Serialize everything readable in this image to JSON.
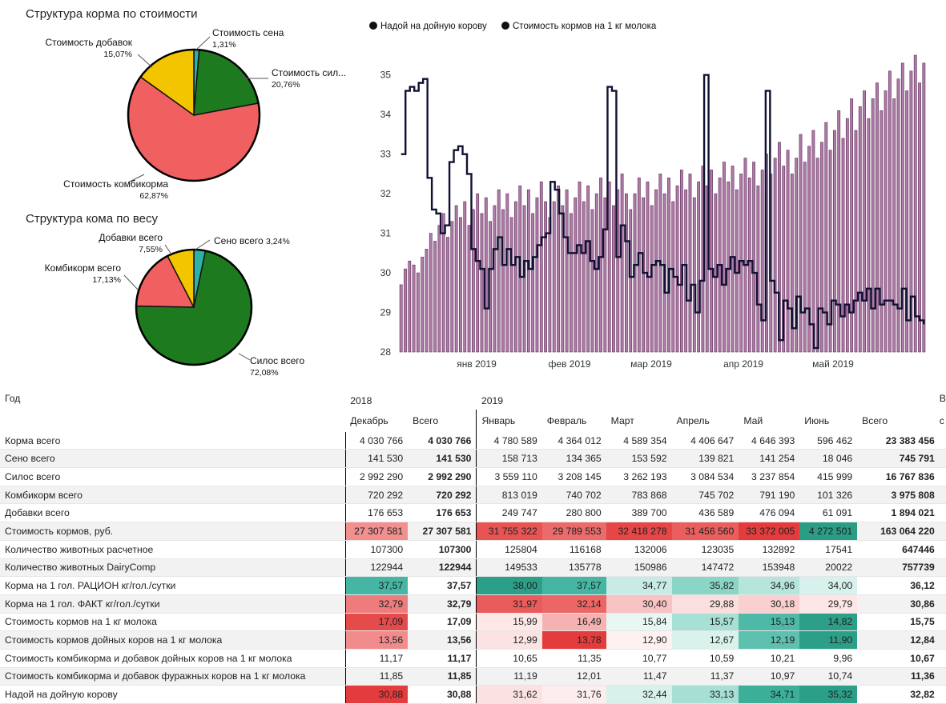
{
  "pie_cost": {
    "title": "Структура корма по стоимости",
    "slices": [
      {
        "label": "Стоимость сена",
        "pct": "1,31%",
        "value": 1.31,
        "color": "#2ab3a6"
      },
      {
        "label": "Стоимость сил...",
        "pct": "20,76%",
        "value": 20.76,
        "color": "#1e7a1e"
      },
      {
        "label": "Стоимость комбикорма",
        "pct": "62,87%",
        "value": 62.87,
        "color": "#f06060"
      },
      {
        "label": "Стоимость добавок",
        "pct": "15,07%",
        "value": 15.07,
        "color": "#f2c500"
      }
    ]
  },
  "pie_weight": {
    "title": "Структура кома по весу",
    "slices": [
      {
        "label": "Сено всего",
        "pct": "3,24%",
        "value": 3.24,
        "color": "#2ab3a6"
      },
      {
        "label": "Силос всего",
        "pct": "72,08%",
        "value": 72.08,
        "color": "#1e7a1e"
      },
      {
        "label": "Комбикорм всего",
        "pct": "17,13%",
        "value": 17.13,
        "color": "#f06060"
      },
      {
        "label": "Добавки всего",
        "pct": "7,55%",
        "value": 7.55,
        "color": "#f2c500"
      }
    ]
  },
  "chart_data": {
    "type": "bar",
    "legend": [
      "Надой на дойную корову",
      "Стоимость кормов на 1 кг молока"
    ],
    "legend_placement": "top-left",
    "ylim": [
      28,
      35.5
    ],
    "yticks": [
      "28",
      "29",
      "30",
      "31",
      "32",
      "33",
      "34",
      "35"
    ],
    "xticks": [
      "янв 2019",
      "фев 2019",
      "мар 2019",
      "апр 2019",
      "май 2019"
    ],
    "series": [
      {
        "name": "Надой на дойную корову",
        "kind": "bar",
        "color": "#b07aa8",
        "values": [
          29.7,
          30.1,
          30.3,
          30.2,
          30.0,
          30.4,
          30.6,
          31.0,
          30.8,
          31.2,
          31.5,
          30.9,
          31.3,
          31.7,
          31.4,
          31.8,
          31.2,
          31.6,
          32.0,
          31.5,
          31.9,
          31.3,
          31.7,
          32.1,
          31.6,
          32.0,
          31.4,
          31.8,
          32.2,
          31.7,
          32.1,
          31.5,
          31.9,
          32.3,
          31.8,
          31.4,
          31.8,
          32.2,
          31.7,
          32.1,
          31.5,
          31.9,
          32.3,
          31.8,
          32.2,
          31.6,
          32.0,
          32.4,
          31.9,
          32.3,
          31.7,
          32.1,
          32.5,
          32.0,
          31.6,
          32.0,
          32.4,
          31.9,
          32.3,
          31.7,
          32.1,
          32.5,
          32.0,
          32.4,
          31.8,
          32.2,
          32.6,
          32.1,
          32.5,
          31.9,
          32.3,
          32.7,
          32.2,
          32.6,
          32.0,
          32.4,
          32.8,
          32.3,
          32.7,
          32.1,
          32.5,
          32.9,
          32.4,
          32.8,
          32.2,
          32.6,
          33.0,
          32.5,
          32.9,
          33.3,
          32.7,
          33.1,
          32.5,
          32.9,
          33.5,
          32.8,
          33.2,
          33.6,
          32.9,
          33.3,
          33.8,
          33.1,
          33.6,
          34.1,
          33.4,
          33.9,
          34.4,
          33.6,
          34.2,
          34.6,
          33.9,
          34.4,
          34.8,
          34.1,
          34.6,
          35.1,
          34.4,
          34.9,
          35.3,
          34.6,
          35.1,
          35.5,
          34.8,
          35.3
        ],
        "notes": "Bar heights approximated; values in liters per cow"
      },
      {
        "name": "Стоимость кормов на 1 кг молока",
        "kind": "line",
        "color": "#111133",
        "values": [
          33.0,
          34.6,
          34.7,
          34.6,
          34.8,
          34.9,
          32.4,
          31.6,
          31.5,
          31.0,
          31.2,
          32.8,
          33.1,
          33.2,
          33.0,
          32.5,
          30.6,
          30.3,
          30.1,
          29.1,
          30.1,
          30.6,
          30.9,
          30.2,
          30.6,
          30.2,
          30.4,
          29.9,
          30.3,
          30.1,
          30.4,
          30.7,
          30.9,
          31.0,
          32.3,
          32.1,
          31.5,
          30.9,
          30.5,
          30.5,
          30.7,
          30.5,
          30.8,
          30.3,
          30.1,
          30.4,
          31.1,
          34.7,
          34.6,
          30.4,
          31.2,
          30.8,
          29.9,
          30.2,
          30.5,
          30.0,
          29.9,
          30.2,
          30.3,
          30.2,
          29.5,
          30.1,
          29.9,
          29.7,
          30.2,
          29.3,
          29.7,
          29.0,
          29.8,
          35.0,
          30.1,
          29.9,
          30.2,
          29.7,
          30.1,
          30.4,
          30.0,
          30.3,
          30.2,
          30.3,
          30.0,
          29.2,
          28.8,
          34.6,
          29.8,
          29.5,
          28.3,
          29.3,
          29.1,
          28.6,
          29.4,
          29.0,
          29.1,
          28.7,
          28.1,
          29.1,
          29.0,
          28.7,
          29.3,
          29.2,
          28.9,
          29.2,
          29.0,
          29.3,
          29.5,
          29.3,
          29.6,
          29.1,
          29.6,
          29.2,
          29.3,
          29.3,
          29.2,
          29.1,
          29.6,
          28.8,
          29.4,
          28.9,
          28.8,
          28.7
        ],
        "notes": "Line series values approximated as read off same axis"
      }
    ]
  },
  "table": {
    "corner": "Год",
    "years": [
      {
        "label": "2018",
        "span": 2
      },
      {
        "label": "2019",
        "span": 7
      }
    ],
    "headers": [
      "Декабрь",
      "Всего",
      "Январь",
      "Февраль",
      "Март",
      "Апрель",
      "Май",
      "Июнь",
      "Всего"
    ],
    "edge_chars": [
      "В",
      "с"
    ],
    "rows": [
      {
        "name": "Корма всего",
        "cells": [
          "4 030 766",
          "4 030 766",
          "4 780 589",
          "4 364 012",
          "4 589 354",
          "4 406 647",
          "4 646 393",
          "596 462",
          "23 383 456"
        ]
      },
      {
        "name": "Сено всего",
        "cells": [
          "141 530",
          "141 530",
          "158 713",
          "134 365",
          "153 592",
          "139 821",
          "141 254",
          "18 046",
          "745 791"
        ]
      },
      {
        "name": "Силос всего",
        "cells": [
          "2 992 290",
          "2 992 290",
          "3 559 110",
          "3 208 145",
          "3 262 193",
          "3 084 534",
          "3 237 854",
          "415 999",
          "16 767 836"
        ]
      },
      {
        "name": "Комбикорм всего",
        "cells": [
          "720 292",
          "720 292",
          "813 019",
          "740 702",
          "783 868",
          "745 702",
          "791 190",
          "101 326",
          "3 975 808"
        ]
      },
      {
        "name": "Добавки всего",
        "cells": [
          "176 653",
          "176 653",
          "249 747",
          "280 800",
          "389 700",
          "436 589",
          "476 094",
          "61 091",
          "1 894 021"
        ]
      },
      {
        "name": "Стоимость кормов, руб.",
        "cells": [
          "27 307 581",
          "27 307 581",
          "31 755 322",
          "29 789 553",
          "32 418 278",
          "31 456 560",
          "33 372 005",
          "4 272 501",
          "163 064 220"
        ],
        "colors": [
          "#f28f8f",
          null,
          "#e85454",
          "#eb6b6b",
          "#e64646",
          "#ea5e5e",
          "#e43c3c",
          "#2a9d84",
          null
        ]
      },
      {
        "name": "Количество животных расчетное",
        "cells": [
          "107300",
          "107300",
          "125804",
          "116168",
          "132006",
          "123035",
          "132892",
          "17541",
          "647446"
        ]
      },
      {
        "name": "Количество животных DairyComp",
        "cells": [
          "122944",
          "122944",
          "149533",
          "135778",
          "150986",
          "147472",
          "153948",
          "20022",
          "757739"
        ]
      },
      {
        "name": "Корма на 1 гол. РАЦИОН кг/гол./сутки",
        "cells": [
          "37,57",
          "37,57",
          "38,00",
          "37,57",
          "34,77",
          "35,82",
          "34,96",
          "34,00",
          "36,12"
        ],
        "colors": [
          "#45b6a3",
          null,
          "#2c9f88",
          "#45b6a3",
          "#c8ece5",
          "#8ad6c6",
          "#b5e5db",
          "#d7f1ec",
          null
        ]
      },
      {
        "name": "Корма на 1 гол. ФАКТ кг/гол./сутки",
        "cells": [
          "32,79",
          "32,79",
          "31,97",
          "32,14",
          "30,40",
          "29,88",
          "30,18",
          "29,79",
          "30,86"
        ],
        "colors": [
          "#ee7c7c",
          null,
          "#ea5b5b",
          "#ec6666",
          "#f8c3c3",
          "#fbdede",
          "#f9cfcf",
          "#fde6e6",
          null
        ]
      },
      {
        "name": "Стоимость кормов на 1 кг молока",
        "cells": [
          "17,09",
          "17,09",
          "15,99",
          "16,49",
          "15,84",
          "15,57",
          "15,13",
          "14,82",
          "15,75"
        ],
        "colors": [
          "#e64b4b",
          null,
          "#fde7e7",
          "#f6b2b2",
          "#e8f7f3",
          "#a8e0d5",
          "#4eb9a6",
          "#2c9f88",
          null
        ]
      },
      {
        "name": "Стоимость кормов дойных коров на 1 кг молока",
        "cells": [
          "13,56",
          "13,56",
          "12,99",
          "13,78",
          "12,90",
          "12,67",
          "12,19",
          "11,90",
          "12,84"
        ],
        "colors": [
          "#f28c8c",
          null,
          "#fbe3e3",
          "#e43c3c",
          "#fdf1f1",
          "#d9f2ec",
          "#5ec0ae",
          "#2c9f88",
          null
        ]
      },
      {
        "name": "Стоимость комбикорма и добавок дойных коров на 1 кг молока",
        "cells": [
          "11,17",
          "11,17",
          "10,65",
          "11,35",
          "10,77",
          "10,59",
          "10,21",
          "9,96",
          "10,67"
        ]
      },
      {
        "name": "Стоимость комбикорма и добавок фуражных коров на 1 кг молока",
        "cells": [
          "11,85",
          "11,85",
          "11,19",
          "12,01",
          "11,47",
          "11,37",
          "10,97",
          "10,74",
          "11,36"
        ]
      },
      {
        "name": "Надой на дойную корову",
        "cells": [
          "30,88",
          "30,88",
          "31,62",
          "31,76",
          "32,44",
          "33,13",
          "34,71",
          "35,32",
          "32,82"
        ],
        "colors": [
          "#e43c3c",
          null,
          "#fbe2e2",
          "#fdeeee",
          "#d8f1eb",
          "#a6dfd3",
          "#3caf99",
          "#2c9f88",
          null
        ]
      }
    ]
  }
}
